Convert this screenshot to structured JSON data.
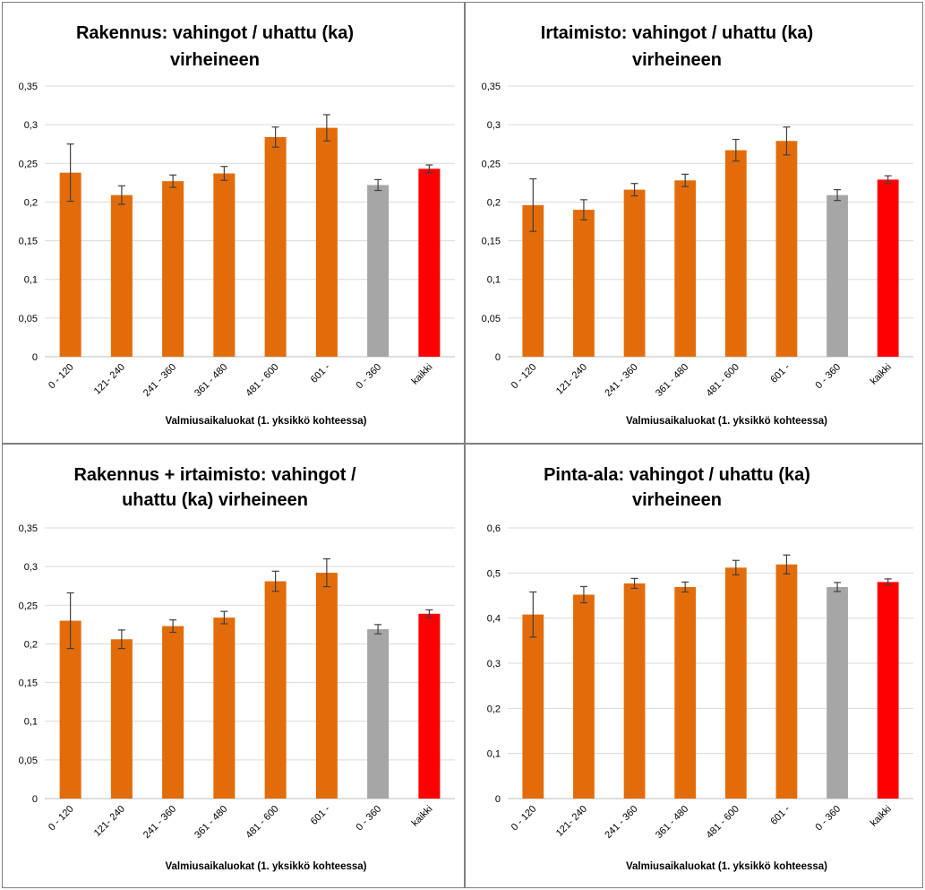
{
  "colors": {
    "bar_main": "#e36c0a",
    "bar_ref": "#a6a6a6",
    "bar_all": "#ff0000"
  },
  "chart_data": [
    {
      "type": "bar",
      "title_lines": [
        "Rakennus: vahingot / uhattu (ka)",
        "virheineen"
      ],
      "xlabel": "Valmiusaikaluokat (1. yksikkö kohteessa)",
      "ylabel": "",
      "categories": [
        "0 - 120",
        "121- 240",
        "241 - 360",
        "361 - 480",
        "481 - 600",
        "601 -",
        "0 - 360",
        "kaikki"
      ],
      "values": [
        0.238,
        0.209,
        0.227,
        0.237,
        0.284,
        0.296,
        0.222,
        0.243
      ],
      "errors": [
        0.037,
        0.012,
        0.008,
        0.009,
        0.013,
        0.017,
        0.007,
        0.005
      ],
      "bar_colors": [
        "main",
        "main",
        "main",
        "main",
        "main",
        "main",
        "ref",
        "all"
      ],
      "ylim": [
        0,
        0.35
      ],
      "yticks": [
        0,
        0.05,
        0.1,
        0.15,
        0.2,
        0.25,
        0.3,
        0.35
      ],
      "ytick_labels": [
        "0",
        "0,05",
        "0,1",
        "0,15",
        "0,2",
        "0,25",
        "0,3",
        "0,35"
      ],
      "grid": true
    },
    {
      "type": "bar",
      "title_lines": [
        "Irtaimisto: vahingot / uhattu (ka)",
        "virheineen"
      ],
      "xlabel": "Valmiusaikaluokat (1. yksikkö kohteessa)",
      "ylabel": "",
      "categories": [
        "0 - 120",
        "121- 240",
        "241 - 360",
        "361 - 480",
        "481 - 600",
        "601 -",
        "0 - 360",
        "kaikki"
      ],
      "values": [
        0.196,
        0.19,
        0.216,
        0.228,
        0.267,
        0.279,
        0.209,
        0.229
      ],
      "errors": [
        0.034,
        0.013,
        0.008,
        0.008,
        0.014,
        0.018,
        0.007,
        0.005
      ],
      "bar_colors": [
        "main",
        "main",
        "main",
        "main",
        "main",
        "main",
        "ref",
        "all"
      ],
      "ylim": [
        0,
        0.35
      ],
      "yticks": [
        0,
        0.05,
        0.1,
        0.15,
        0.2,
        0.25,
        0.3,
        0.35
      ],
      "ytick_labels": [
        "0",
        "0,05",
        "0,1",
        "0,15",
        "0,2",
        "0,25",
        "0,3",
        "0,35"
      ],
      "grid": true
    },
    {
      "type": "bar",
      "title_lines": [
        "Rakennus + irtaimisto: vahingot /",
        "uhattu (ka) virheineen"
      ],
      "xlabel": "Valmiusaikaluokat (1. yksikkö kohteessa)",
      "ylabel": "",
      "categories": [
        "0 - 120",
        "121- 240",
        "241 - 360",
        "361 - 480",
        "481 - 600",
        "601 -",
        "0 - 360",
        "kaikki"
      ],
      "values": [
        0.23,
        0.206,
        0.223,
        0.234,
        0.281,
        0.292,
        0.219,
        0.239
      ],
      "errors": [
        0.036,
        0.012,
        0.008,
        0.008,
        0.013,
        0.018,
        0.006,
        0.005
      ],
      "bar_colors": [
        "main",
        "main",
        "main",
        "main",
        "main",
        "main",
        "ref",
        "all"
      ],
      "ylim": [
        0,
        0.35
      ],
      "yticks": [
        0,
        0.05,
        0.1,
        0.15,
        0.2,
        0.25,
        0.3,
        0.35
      ],
      "ytick_labels": [
        "0",
        "0,05",
        "0,1",
        "0,15",
        "0,2",
        "0,25",
        "0,3",
        "0,35"
      ],
      "grid": true
    },
    {
      "type": "bar",
      "title_lines": [
        "Pinta-ala: vahingot / uhattu (ka)",
        "virheineen"
      ],
      "xlabel": "Valmiusaikaluokat (1. yksikkö kohteessa)",
      "ylabel": "",
      "categories": [
        "0 - 120",
        "121- 240",
        "241 - 360",
        "361 - 480",
        "481 - 600",
        "601 -",
        "0 - 360",
        "kaikki"
      ],
      "values": [
        0.408,
        0.452,
        0.477,
        0.469,
        0.512,
        0.519,
        0.469,
        0.48
      ],
      "errors": [
        0.05,
        0.018,
        0.011,
        0.011,
        0.016,
        0.021,
        0.01,
        0.007
      ],
      "bar_colors": [
        "main",
        "main",
        "main",
        "main",
        "main",
        "main",
        "ref",
        "all"
      ],
      "ylim": [
        0,
        0.6
      ],
      "yticks": [
        0,
        0.1,
        0.2,
        0.3,
        0.4,
        0.5,
        0.6
      ],
      "ytick_labels": [
        "0",
        "0,1",
        "0,2",
        "0,3",
        "0,4",
        "0,5",
        "0,6"
      ],
      "grid": true
    }
  ]
}
